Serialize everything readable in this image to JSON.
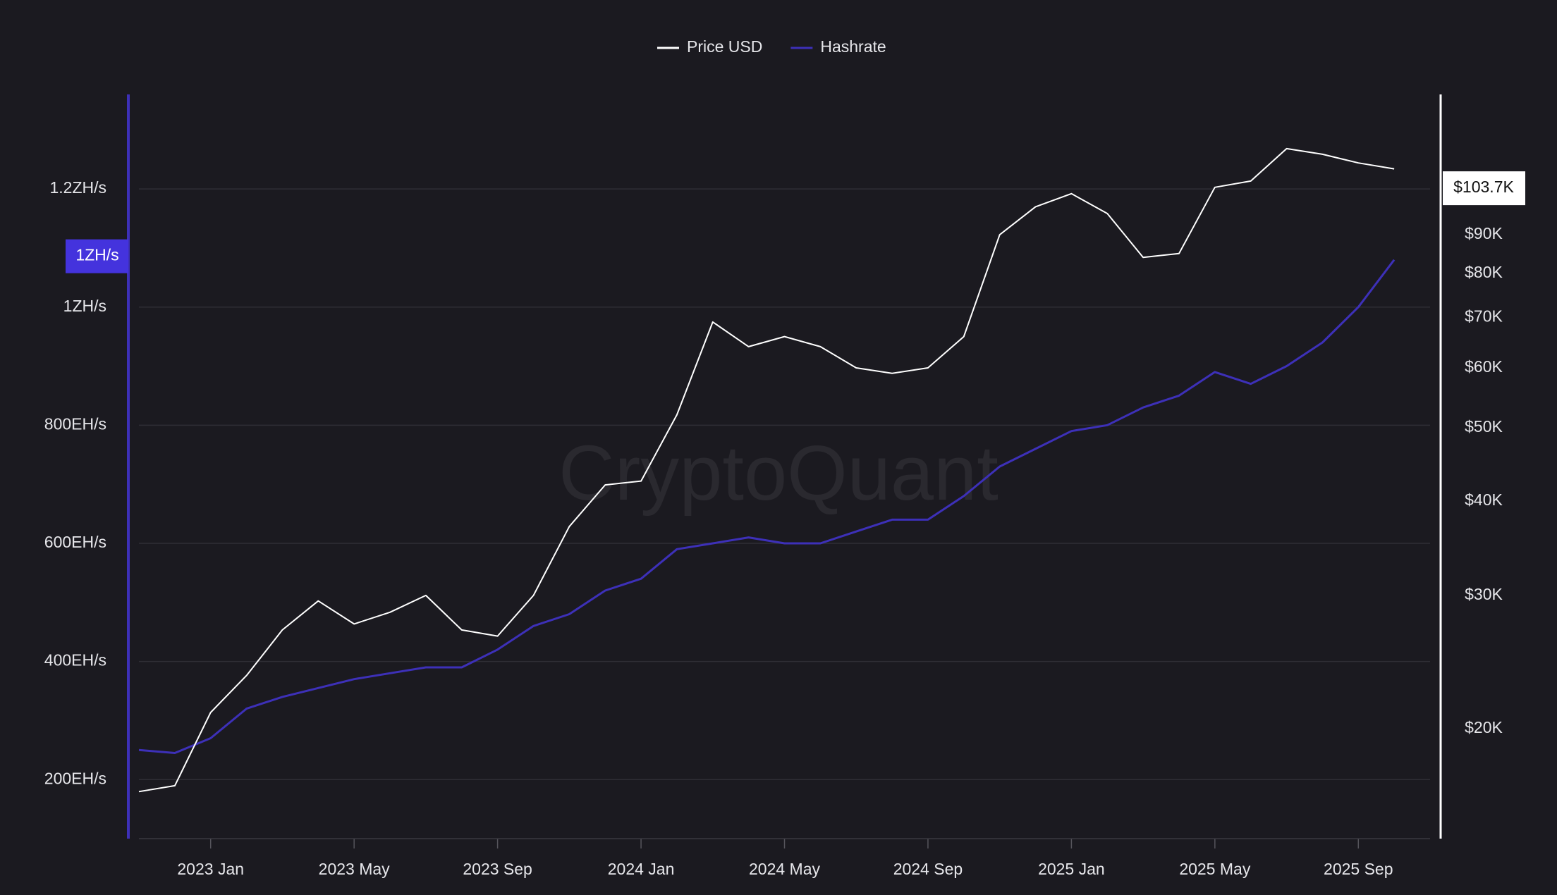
{
  "chart_data": {
    "type": "line",
    "watermark": "CryptoQuant",
    "x": [
      "2022-11",
      "2022-12",
      "2023-01",
      "2023-02",
      "2023-03",
      "2023-04",
      "2023-05",
      "2023-06",
      "2023-07",
      "2023-08",
      "2023-09",
      "2023-10",
      "2023-11",
      "2023-12",
      "2024-01",
      "2024-02",
      "2024-03",
      "2024-04",
      "2024-05",
      "2024-06",
      "2024-07",
      "2024-08",
      "2024-09",
      "2024-10",
      "2024-11",
      "2024-12",
      "2025-01",
      "2025-02",
      "2025-03",
      "2025-04",
      "2025-05",
      "2025-06",
      "2025-07",
      "2025-08",
      "2025-09",
      "2025-10"
    ],
    "xlim": [
      "2022-11",
      "2025-11"
    ],
    "xticks": [
      {
        "value": "2023-01",
        "label": "2023 Jan"
      },
      {
        "value": "2023-05",
        "label": "2023 May"
      },
      {
        "value": "2023-09",
        "label": "2023 Sep"
      },
      {
        "value": "2024-01",
        "label": "2024 Jan"
      },
      {
        "value": "2024-05",
        "label": "2024 May"
      },
      {
        "value": "2024-09",
        "label": "2024 Sep"
      },
      {
        "value": "2025-01",
        "label": "2025 Jan"
      },
      {
        "value": "2025-05",
        "label": "2025 May"
      },
      {
        "value": "2025-09",
        "label": "2025 Sep"
      }
    ],
    "series": [
      {
        "name": "Price USD",
        "color": "#ffffff",
        "axis": "y2",
        "values": [
          16500,
          16800,
          21000,
          23500,
          27000,
          29500,
          27500,
          28500,
          30000,
          27000,
          26500,
          30000,
          37000,
          42000,
          42500,
          52000,
          69000,
          64000,
          66000,
          64000,
          60000,
          59000,
          60000,
          66000,
          90000,
          98000,
          102000,
          96000,
          84000,
          85000,
          104000,
          106000,
          117000,
          115000,
          112000,
          110000
        ]
      },
      {
        "name": "Hashrate",
        "color": "#3d30b8",
        "axis": "y",
        "values": [
          250,
          245,
          270,
          320,
          340,
          355,
          370,
          380,
          390,
          390,
          420,
          460,
          480,
          520,
          540,
          590,
          600,
          610,
          600,
          600,
          620,
          640,
          640,
          680,
          730,
          760,
          790,
          800,
          830,
          850,
          890,
          870,
          900,
          940,
          1000,
          1080
        ]
      }
    ],
    "ylim": [
      100,
      1360
    ],
    "yticks": [
      {
        "value": 200,
        "label": "200EH/s"
      },
      {
        "value": 400,
        "label": "400EH/s"
      },
      {
        "value": 600,
        "label": "600EH/s"
      },
      {
        "value": 800,
        "label": "800EH/s"
      },
      {
        "value": 1000,
        "label": "1ZH/s"
      },
      {
        "value": 1200,
        "label": "1.2ZH/s"
      }
    ],
    "y2lim": [
      14300,
      138000
    ],
    "y2_scale": "log",
    "y2ticks": [
      {
        "value": 20000,
        "label": "$20K"
      },
      {
        "value": 30000,
        "label": "$30K"
      },
      {
        "value": 40000,
        "label": "$40K"
      },
      {
        "value": 50000,
        "label": "$50K"
      },
      {
        "value": 60000,
        "label": "$60K"
      },
      {
        "value": 70000,
        "label": "$70K"
      },
      {
        "value": 80000,
        "label": "$80K"
      },
      {
        "value": 90000,
        "label": "$90K"
      }
    ],
    "grid": true,
    "legend": "top",
    "markers": [
      {
        "axis": "y",
        "value": 1086,
        "label": "1ZH/s",
        "color": "#4433dd"
      },
      {
        "axis": "y2",
        "value": 103700,
        "label": "$103.7K",
        "color": "#ffffff"
      }
    ]
  }
}
